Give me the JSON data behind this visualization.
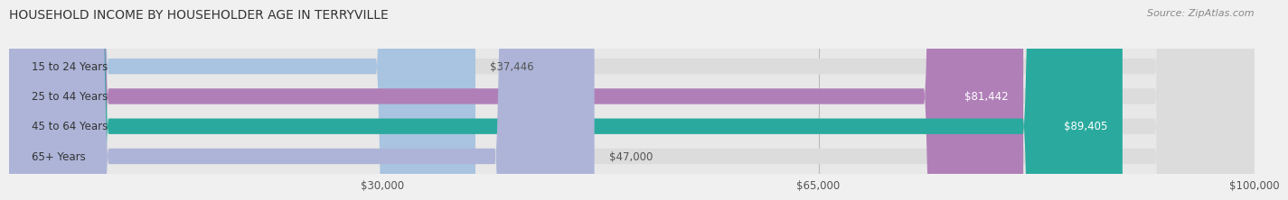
{
  "title": "HOUSEHOLD INCOME BY HOUSEHOLDER AGE IN TERRYVILLE",
  "source": "Source: ZipAtlas.com",
  "categories": [
    "15 to 24 Years",
    "25 to 44 Years",
    "45 to 64 Years",
    "65+ Years"
  ],
  "values": [
    37446,
    81442,
    89405,
    47000
  ],
  "bar_colors": [
    "#a8c4e0",
    "#b07fb8",
    "#2aaa9e",
    "#adb4d8"
  ],
  "label_colors": [
    "#555555",
    "#ffffff",
    "#ffffff",
    "#555555"
  ],
  "bg_color": "#f0f0f0",
  "bar_bg_color": "#e8e8e8",
  "track_color": "#dcdcdc",
  "xlim": [
    0,
    100000
  ],
  "xticks": [
    30000,
    65000,
    100000
  ],
  "xtick_labels": [
    "$30,000",
    "$65,000",
    "$100,000"
  ],
  "value_labels": [
    "$37,446",
    "$81,442",
    "$89,405",
    "$47,000"
  ],
  "title_fontsize": 10,
  "source_fontsize": 8,
  "bar_height": 0.52,
  "bar_label_fontsize": 8.5,
  "cat_label_fontsize": 8.5,
  "rounding_size": 8000
}
